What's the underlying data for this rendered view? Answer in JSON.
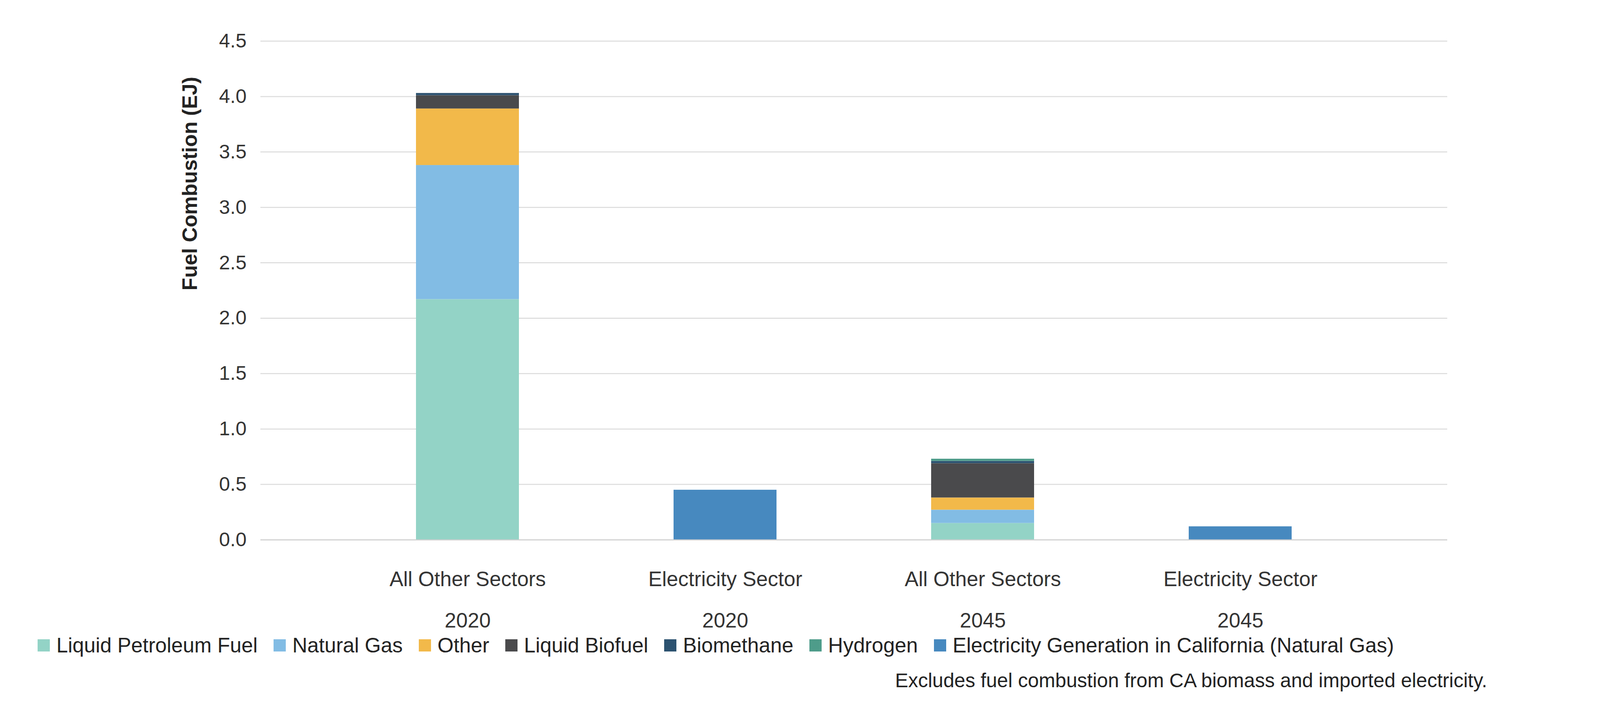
{
  "chart_data": {
    "type": "bar",
    "stacked": true,
    "y_label": "Fuel Combustion (EJ)",
    "categories": [
      "All Other Sectors",
      "Electricity Sector",
      "All Other Sectors",
      "Electricity Sector"
    ],
    "category_groups": [
      "2020",
      "2020",
      "2045",
      "2045"
    ],
    "series": [
      {
        "name": "Liquid Petroleum Fuel",
        "color": "#93d3c6",
        "values": [
          2.17,
          0,
          0.15,
          0
        ]
      },
      {
        "name": "Natural Gas",
        "color": "#82bce4",
        "values": [
          1.21,
          0,
          0.12,
          0
        ]
      },
      {
        "name": "Other",
        "color": "#f2b94a",
        "values": [
          0.51,
          0,
          0.11,
          0
        ]
      },
      {
        "name": "Liquid Biofuel",
        "color": "#4a4a4c",
        "values": [
          0.12,
          0,
          0.31,
          0
        ]
      },
      {
        "name": "Biomethane",
        "color": "#2c5270",
        "values": [
          0.02,
          0,
          0.02,
          0
        ]
      },
      {
        "name": "Hydrogen",
        "color": "#4e9c8a",
        "values": [
          0,
          0,
          0.02,
          0
        ]
      },
      {
        "name": "Electricity Generation in California (Natural Gas)",
        "color": "#4789bf",
        "values": [
          0,
          0.45,
          0,
          0.12
        ]
      }
    ],
    "ylim": [
      0,
      4.5
    ],
    "yticks": [
      {
        "value": 0,
        "label": "0.0"
      },
      0.5,
      {
        "value": 1,
        "label": "1.0"
      },
      1.5,
      {
        "value": 2,
        "label": "2.0"
      },
      2.5,
      {
        "value": 3,
        "label": "3.0"
      },
      3.5,
      {
        "value": 4,
        "label": "4.0"
      },
      4.5
    ],
    "grid": true,
    "legend": "bottom",
    "caption": "Excludes fuel combustion from CA biomass and imported electricity."
  }
}
